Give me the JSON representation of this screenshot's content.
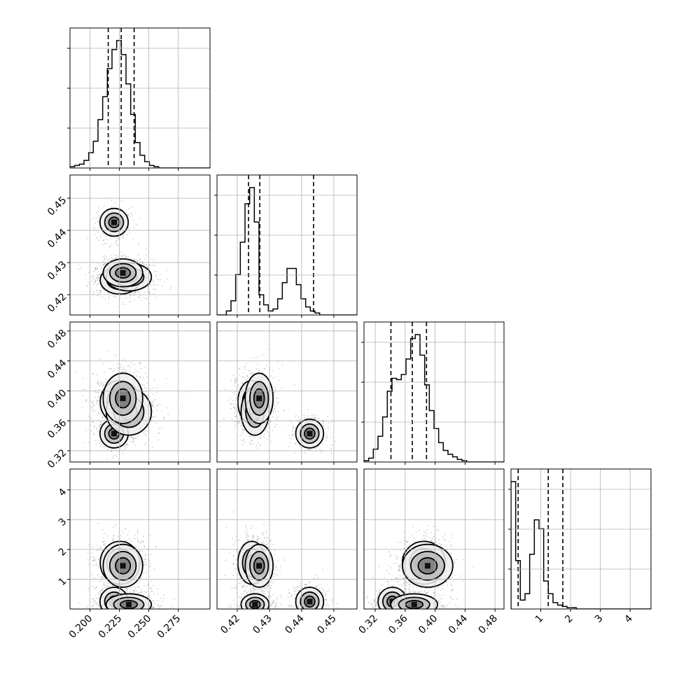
{
  "chart_data": {
    "type": "corner",
    "parameters": [
      {
        "xlim": [
          0.183,
          0.302
        ],
        "ticks": [
          0.2,
          0.225,
          0.25,
          0.275
        ],
        "tick_labels": [
          "0.200",
          "0.225",
          "0.250",
          "0.275"
        ],
        "quantiles": [
          0.2155,
          0.2265,
          0.2375
        ]
      },
      {
        "xlim": [
          0.4137,
          0.4572
        ],
        "ticks": [
          0.42,
          0.43,
          0.44,
          0.45
        ],
        "tick_labels": [
          "0.42",
          "0.43",
          "0.44",
          "0.45"
        ],
        "quantiles": [
          0.4235,
          0.427,
          0.4437
        ]
      },
      {
        "xlim": [
          0.305,
          0.492
        ],
        "ticks": [
          0.32,
          0.36,
          0.4,
          0.44,
          0.48
        ],
        "tick_labels": [
          "0.32",
          "0.36",
          "0.40",
          "0.44",
          "0.48"
        ],
        "quantiles": [
          0.341,
          0.3695,
          0.3885
        ]
      },
      {
        "xlim": [
          0.0,
          4.7
        ],
        "ticks": [
          1,
          2,
          3,
          4
        ],
        "tick_labels": [
          "1",
          "2",
          "3",
          "4"
        ],
        "quantiles": [
          0.24,
          1.25,
          1.74
        ]
      }
    ],
    "histograms": [
      [
        1,
        2,
        3,
        6,
        12,
        21,
        38,
        56,
        78,
        93,
        100,
        89,
        66,
        42,
        20,
        10,
        5,
        2,
        1,
        0,
        0,
        0,
        0,
        0,
        0,
        0,
        0,
        0,
        0,
        0
      ],
      [
        0,
        0,
        2,
        7,
        20,
        36,
        55,
        63,
        46,
        10,
        5,
        2,
        3,
        8,
        16,
        23,
        23,
        15,
        8,
        4,
        2,
        1,
        0,
        0,
        0,
        0,
        0,
        0,
        0,
        0
      ],
      [
        1,
        3,
        10,
        20,
        35,
        55,
        65,
        64,
        68,
        80,
        96,
        99,
        83,
        60,
        40,
        26,
        15,
        9,
        6,
        4,
        2,
        1,
        0,
        0,
        0,
        0,
        0,
        0,
        0,
        0
      ],
      [
        100,
        38,
        7,
        12,
        43,
        70,
        63,
        22,
        12,
        5,
        3,
        2,
        1,
        1,
        0,
        0,
        0,
        0,
        0,
        0,
        0,
        0,
        0,
        0,
        0,
        0,
        0,
        0,
        0,
        0
      ]
    ],
    "modes": [
      {
        "weight": 0.2,
        "mean": [
          0.2205,
          0.4425,
          0.343,
          0.25
        ],
        "sd": [
          0.005,
          0.0018,
          0.008,
          0.2
        ]
      },
      {
        "weight": 0.3,
        "mean": [
          0.2255,
          0.4245,
          0.385,
          1.55
        ],
        "sd": [
          0.007,
          0.0018,
          0.012,
          0.3
        ]
      },
      {
        "weight": 0.3,
        "mean": [
          0.233,
          0.4255,
          0.372,
          0.15
        ],
        "sd": [
          0.008,
          0.0018,
          0.013,
          0.15
        ]
      },
      {
        "weight": 0.2,
        "mean": [
          0.228,
          0.4268,
          0.39,
          1.45
        ],
        "sd": [
          0.007,
          0.0018,
          0.014,
          0.3
        ]
      }
    ],
    "grid": true
  }
}
